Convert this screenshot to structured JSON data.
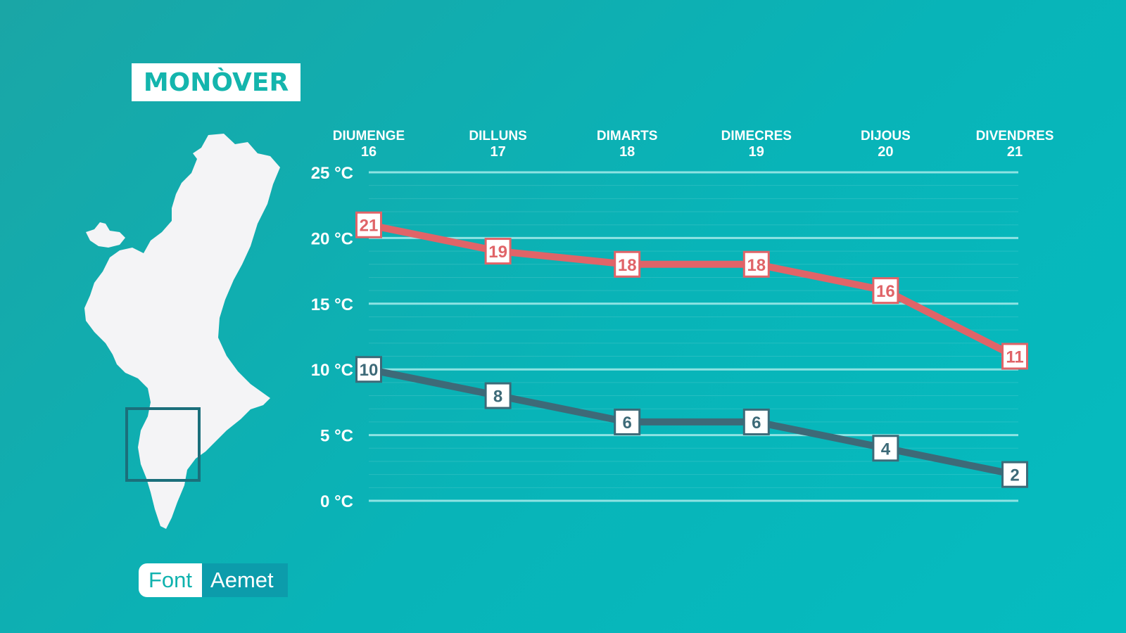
{
  "title": "MONÒVER",
  "source": {
    "label": "Font",
    "value": "Aemet"
  },
  "colors": {
    "max": "#e06468",
    "min": "#3d6a78",
    "grid": "#8ee3e3",
    "text": "#ffffff"
  },
  "map": {
    "icon": "valencian-community-map"
  },
  "chart_data": {
    "type": "line",
    "categories": [
      {
        "day": "DIUMENGE",
        "date": "16"
      },
      {
        "day": "DILLUNS",
        "date": "17"
      },
      {
        "day": "DIMARTS",
        "date": "18"
      },
      {
        "day": "DIMECRES",
        "date": "19"
      },
      {
        "day": "DIJOUS",
        "date": "20"
      },
      {
        "day": "DIVENDRES",
        "date": "21"
      }
    ],
    "yticks": [
      "0 °C",
      "5 °C",
      "10 °C",
      "15 °C",
      "20 °C",
      "25 °C"
    ],
    "ylim": [
      0,
      25
    ],
    "grid": true,
    "series": [
      {
        "key": "max",
        "values": [
          21,
          19,
          18,
          18,
          16,
          11
        ]
      },
      {
        "key": "min",
        "values": [
          10,
          8,
          6,
          6,
          4,
          2
        ]
      }
    ]
  }
}
